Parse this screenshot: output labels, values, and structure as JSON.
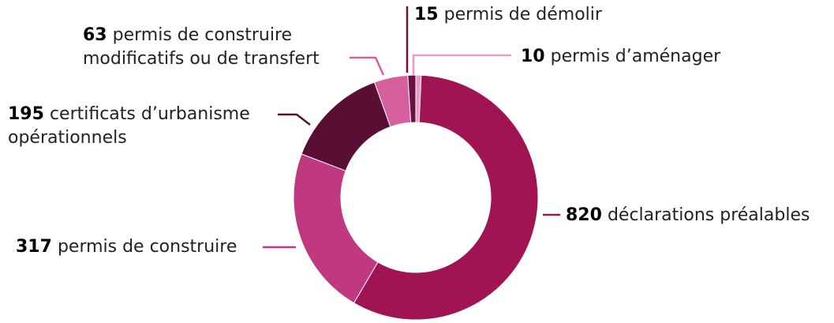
{
  "chart_data": {
    "type": "donut",
    "categories": [
      [
        "permis d’aménager"
      ],
      [
        "déclarations préalables"
      ],
      [
        "permis de construire"
      ],
      [
        "certificats d’urbanisme",
        "opérationnels"
      ],
      [
        "permis de construire",
        "modificatifs ou de transfert"
      ],
      [
        "permis de démolir"
      ]
    ],
    "values": [
      10,
      820,
      317,
      195,
      63,
      15
    ],
    "colors": [
      "#e99bc1",
      "#a01454",
      "#c0387f",
      "#5a0e33",
      "#d6609d",
      "#6b1040"
    ]
  }
}
